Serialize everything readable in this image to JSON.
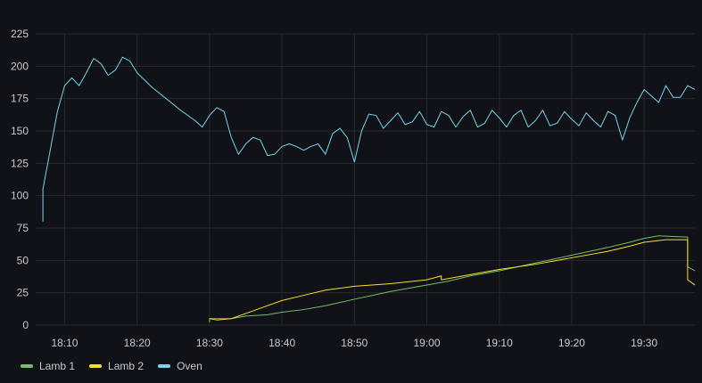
{
  "chart_data": {
    "type": "line",
    "title": "",
    "xlabel": "",
    "ylabel": "",
    "grid": true,
    "legend_placement": "bottom-left",
    "x_tick_labels": [
      "18:10",
      "18:20",
      "18:30",
      "18:40",
      "18:50",
      "19:00",
      "19:10",
      "19:20",
      "19:30"
    ],
    "y_tick_labels": [
      "0",
      "25",
      "50",
      "75",
      "100",
      "125",
      "150",
      "175",
      "200",
      "225"
    ],
    "xlim": [
      "18:06",
      "19:37"
    ],
    "ylim": [
      0,
      225
    ],
    "series": [
      {
        "name": "Lamb 1",
        "color": "#73bf69",
        "points": [
          [
            "18:30",
            2
          ],
          [
            "18:30",
            5
          ],
          [
            "18:33",
            5
          ],
          [
            "18:35",
            7
          ],
          [
            "18:38",
            8
          ],
          [
            "18:40",
            10
          ],
          [
            "18:43",
            12
          ],
          [
            "18:46",
            15
          ],
          [
            "18:50",
            20
          ],
          [
            "18:55",
            26
          ],
          [
            "19:00",
            31
          ],
          [
            "19:03",
            34
          ],
          [
            "19:06",
            38
          ],
          [
            "19:10",
            42
          ],
          [
            "19:15",
            48
          ],
          [
            "19:20",
            54
          ],
          [
            "19:25",
            60
          ],
          [
            "19:28",
            64
          ],
          [
            "19:30",
            67
          ],
          [
            "19:32",
            69
          ],
          [
            "19:36",
            68
          ],
          [
            "19:36",
            45
          ],
          [
            "19:37",
            42
          ]
        ]
      },
      {
        "name": "Lamb 2",
        "color": "#fade2a",
        "points": [
          [
            "18:30",
            5
          ],
          [
            "18:31",
            4
          ],
          [
            "18:33",
            5
          ],
          [
            "18:35",
            9
          ],
          [
            "18:38",
            15
          ],
          [
            "18:40",
            19
          ],
          [
            "18:43",
            23
          ],
          [
            "18:46",
            27
          ],
          [
            "18:50",
            30
          ],
          [
            "18:55",
            32
          ],
          [
            "19:00",
            35
          ],
          [
            "19:02",
            38
          ],
          [
            "19:02",
            35
          ],
          [
            "19:05",
            38
          ],
          [
            "19:10",
            43
          ],
          [
            "19:15",
            47
          ],
          [
            "19:20",
            52
          ],
          [
            "19:25",
            57
          ],
          [
            "19:28",
            61
          ],
          [
            "19:30",
            64
          ],
          [
            "19:33",
            66
          ],
          [
            "19:36",
            66
          ],
          [
            "19:36",
            35
          ],
          [
            "19:37",
            31
          ]
        ]
      },
      {
        "name": "Oven",
        "color": "#73d5e8",
        "points": [
          [
            "18:07",
            80
          ],
          [
            "18:07",
            105
          ],
          [
            "18:08",
            135
          ],
          [
            "18:09",
            165
          ],
          [
            "18:10",
            185
          ],
          [
            "18:11",
            191
          ],
          [
            "18:12",
            185
          ],
          [
            "18:13",
            195
          ],
          [
            "18:14",
            206
          ],
          [
            "18:15",
            202
          ],
          [
            "18:16",
            193
          ],
          [
            "18:17",
            197
          ],
          [
            "18:18",
            207
          ],
          [
            "18:19",
            204
          ],
          [
            "18:20",
            195
          ],
          [
            "18:22",
            184
          ],
          [
            "18:24",
            175
          ],
          [
            "18:26",
            166
          ],
          [
            "18:28",
            158
          ],
          [
            "18:29",
            153
          ],
          [
            "18:30",
            162
          ],
          [
            "18:31",
            168
          ],
          [
            "18:32",
            165
          ],
          [
            "18:33",
            145
          ],
          [
            "18:34",
            132
          ],
          [
            "18:35",
            140
          ],
          [
            "18:36",
            145
          ],
          [
            "18:37",
            143
          ],
          [
            "18:38",
            131
          ],
          [
            "18:39",
            132
          ],
          [
            "18:40",
            138
          ],
          [
            "18:41",
            140
          ],
          [
            "18:42",
            138
          ],
          [
            "18:43",
            135
          ],
          [
            "18:44",
            138
          ],
          [
            "18:45",
            140
          ],
          [
            "18:46",
            132
          ],
          [
            "18:47",
            148
          ],
          [
            "18:48",
            152
          ],
          [
            "18:49",
            145
          ],
          [
            "18:50",
            126
          ],
          [
            "18:51",
            150
          ],
          [
            "18:52",
            163
          ],
          [
            "18:53",
            162
          ],
          [
            "18:54",
            152
          ],
          [
            "18:55",
            158
          ],
          [
            "18:56",
            164
          ],
          [
            "18:57",
            155
          ],
          [
            "18:58",
            157
          ],
          [
            "18:59",
            165
          ],
          [
            "19:00",
            155
          ],
          [
            "19:01",
            153
          ],
          [
            "19:02",
            165
          ],
          [
            "19:03",
            162
          ],
          [
            "19:04",
            153
          ],
          [
            "19:05",
            161
          ],
          [
            "19:06",
            166
          ],
          [
            "19:07",
            153
          ],
          [
            "19:08",
            156
          ],
          [
            "19:09",
            166
          ],
          [
            "19:10",
            160
          ],
          [
            "19:11",
            153
          ],
          [
            "19:12",
            162
          ],
          [
            "19:13",
            166
          ],
          [
            "19:14",
            153
          ],
          [
            "19:15",
            158
          ],
          [
            "19:16",
            166
          ],
          [
            "19:17",
            154
          ],
          [
            "19:18",
            156
          ],
          [
            "19:19",
            165
          ],
          [
            "19:20",
            159
          ],
          [
            "19:21",
            154
          ],
          [
            "19:22",
            164
          ],
          [
            "19:23",
            158
          ],
          [
            "19:24",
            153
          ],
          [
            "19:25",
            165
          ],
          [
            "19:26",
            162
          ],
          [
            "19:27",
            143
          ],
          [
            "19:28",
            160
          ],
          [
            "19:29",
            172
          ],
          [
            "19:30",
            182
          ],
          [
            "19:31",
            177
          ],
          [
            "19:32",
            172
          ],
          [
            "19:33",
            185
          ],
          [
            "19:34",
            176
          ],
          [
            "19:35",
            176
          ],
          [
            "19:36",
            185
          ],
          [
            "19:37",
            182
          ]
        ]
      }
    ]
  },
  "colors": {
    "background": "#111217",
    "grid": "#26282d",
    "tick_text": "#c7c9d1"
  }
}
